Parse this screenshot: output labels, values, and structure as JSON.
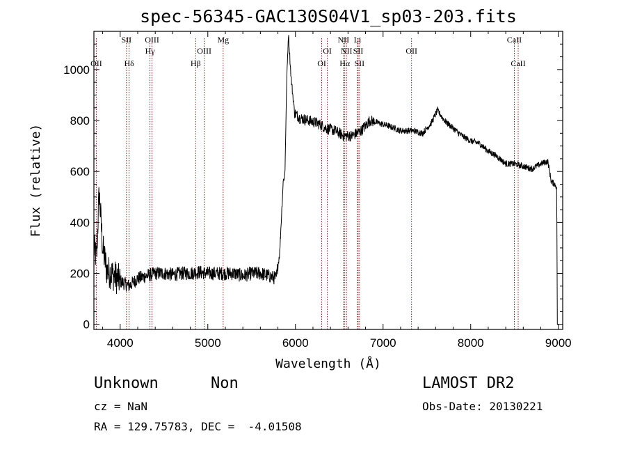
{
  "chart_data": {
    "type": "line",
    "title": "spec-56345-GAC130S04V1_sp03-203.fits",
    "xlabel": "Wavelength (Å)",
    "ylabel": "Flux (relative)",
    "xlim": [
      3700,
      9050
    ],
    "ylim": [
      -20,
      1150
    ],
    "xticks": [
      4000,
      5000,
      6000,
      7000,
      8000,
      9000
    ],
    "yticks": [
      0,
      200,
      400,
      600,
      800,
      1000
    ],
    "line_color": "#000000",
    "marker_color": "#8b0000",
    "spectrum_anchors": [
      [
        3700,
        300
      ],
      [
        3730,
        260
      ],
      [
        3760,
        520
      ],
      [
        3800,
        300
      ],
      [
        3850,
        210
      ],
      [
        3900,
        200
      ],
      [
        4000,
        170
      ],
      [
        4100,
        150
      ],
      [
        4200,
        180
      ],
      [
        4300,
        190
      ],
      [
        4400,
        200
      ],
      [
        4500,
        200
      ],
      [
        4600,
        195
      ],
      [
        4700,
        200
      ],
      [
        4800,
        200
      ],
      [
        4900,
        205
      ],
      [
        5000,
        200
      ],
      [
        5100,
        200
      ],
      [
        5200,
        200
      ],
      [
        5300,
        200
      ],
      [
        5400,
        190
      ],
      [
        5500,
        200
      ],
      [
        5600,
        200
      ],
      [
        5700,
        190
      ],
      [
        5780,
        180
      ],
      [
        5820,
        280
      ],
      [
        5860,
        560
      ],
      [
        5880,
        590
      ],
      [
        5900,
        950
      ],
      [
        5920,
        1140
      ],
      [
        5950,
        970
      ],
      [
        5990,
        830
      ],
      [
        6050,
        810
      ],
      [
        6150,
        800
      ],
      [
        6250,
        790
      ],
      [
        6350,
        770
      ],
      [
        6450,
        760
      ],
      [
        6550,
        740
      ],
      [
        6650,
        740
      ],
      [
        6750,
        760
      ],
      [
        6850,
        800
      ],
      [
        6950,
        790
      ],
      [
        7050,
        780
      ],
      [
        7200,
        760
      ],
      [
        7350,
        760
      ],
      [
        7450,
        750
      ],
      [
        7550,
        790
      ],
      [
        7620,
        840
      ],
      [
        7700,
        800
      ],
      [
        7800,
        770
      ],
      [
        7900,
        740
      ],
      [
        8000,
        720
      ],
      [
        8100,
        710
      ],
      [
        8200,
        680
      ],
      [
        8300,
        660
      ],
      [
        8400,
        630
      ],
      [
        8500,
        630
      ],
      [
        8600,
        620
      ],
      [
        8700,
        610
      ],
      [
        8800,
        630
      ],
      [
        8880,
        640
      ],
      [
        8920,
        560
      ],
      [
        8960,
        550
      ],
      [
        8980,
        540
      ],
      [
        8990,
        50
      ],
      [
        9000,
        0
      ]
    ],
    "lines": [
      {
        "name": "OII",
        "wavelength": 3727,
        "row": 2
      },
      {
        "name": "SII",
        "wavelength": 4072,
        "row": 0
      },
      {
        "name": "Hδ",
        "wavelength": 4102,
        "row": 2
      },
      {
        "name": "OIII",
        "wavelength": 4363,
        "row": 0
      },
      {
        "name": "Hγ",
        "wavelength": 4340,
        "row": 1
      },
      {
        "name": "Hβ",
        "wavelength": 4861,
        "row": 2
      },
      {
        "name": "OIII",
        "wavelength": 4959,
        "row": 1
      },
      {
        "name": "Mg",
        "wavelength": 5175,
        "row": 0
      },
      {
        "name": "OI",
        "wavelength": 6300,
        "row": 2
      },
      {
        "name": "OI",
        "wavelength": 6364,
        "row": 1
      },
      {
        "name": "NII",
        "wavelength": 6548,
        "row": 0
      },
      {
        "name": "NII",
        "wavelength": 6583,
        "row": 1
      },
      {
        "name": "Hα",
        "wavelength": 6563,
        "row": 2
      },
      {
        "name": "Li",
        "wavelength": 6708,
        "row": 0
      },
      {
        "name": "SII",
        "wavelength": 6716,
        "row": 1
      },
      {
        "name": "SII",
        "wavelength": 6731,
        "row": 2
      },
      {
        "name": "OII",
        "wavelength": 7325,
        "row": 1
      },
      {
        "name": "CaII",
        "wavelength": 8498,
        "row": 0
      },
      {
        "name": "CaII",
        "wavelength": 8542,
        "row": 2
      }
    ]
  },
  "info": {
    "class": "Unknown",
    "subclass": "Non",
    "cz": "cz = NaN",
    "coords": "RA = 129.75783, DEC =  -4.01508",
    "survey": "LAMOST DR2",
    "obs_date": "Obs-Date: 20130221"
  }
}
